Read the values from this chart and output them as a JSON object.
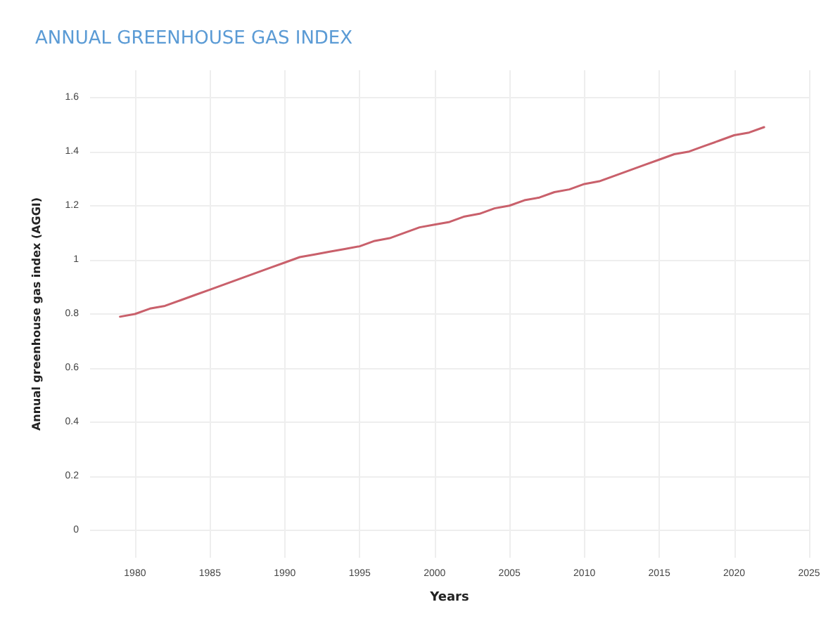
{
  "chart_data": {
    "type": "line",
    "title": "ANNUAL GREENHOUSE GAS INDEX",
    "xlabel": "Years",
    "ylabel": "Annual greenhouse gas index (AGGI)",
    "x": [
      1979,
      1980,
      1981,
      1982,
      1983,
      1984,
      1985,
      1986,
      1987,
      1988,
      1989,
      1990,
      1991,
      1992,
      1993,
      1994,
      1995,
      1996,
      1997,
      1998,
      1999,
      2000,
      2001,
      2002,
      2003,
      2004,
      2005,
      2006,
      2007,
      2008,
      2009,
      2010,
      2011,
      2012,
      2013,
      2014,
      2015,
      2016,
      2017,
      2018,
      2019,
      2020,
      2021,
      2022
    ],
    "series": [
      {
        "color": "#c9606b",
        "values": [
          0.79,
          0.8,
          0.82,
          0.83,
          0.85,
          0.87,
          0.89,
          0.91,
          0.93,
          0.95,
          0.97,
          0.99,
          1.01,
          1.02,
          1.03,
          1.04,
          1.05,
          1.07,
          1.08,
          1.1,
          1.12,
          1.13,
          1.14,
          1.16,
          1.17,
          1.19,
          1.2,
          1.22,
          1.23,
          1.25,
          1.26,
          1.28,
          1.29,
          1.31,
          1.33,
          1.35,
          1.37,
          1.39,
          1.4,
          1.42,
          1.44,
          1.46,
          1.47,
          1.49
        ]
      }
    ],
    "xlim": [
      1977,
      2025
    ],
    "xticks": [
      1980,
      1985,
      1990,
      1995,
      2000,
      2005,
      2010,
      2015,
      2020,
      2025
    ],
    "ylim": [
      -0.1,
      1.7
    ],
    "yticks": [
      0,
      0.2,
      0.4,
      0.6,
      0.8,
      1,
      1.2,
      1.4,
      1.6
    ],
    "grid": true,
    "marker": "none",
    "line_style": "solid"
  }
}
